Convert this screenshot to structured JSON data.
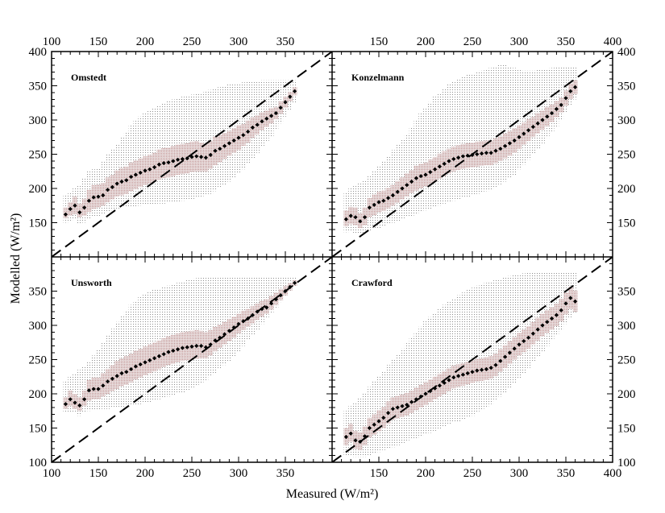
{
  "chart_data": {
    "type": "scatter",
    "layout": "2x2 panels sharing axes",
    "xlabel": "Measured (W/m²)",
    "ylabel": "Modelled (W/m²)",
    "xlim": [
      100,
      400
    ],
    "ylim": [
      100,
      400
    ],
    "x_ticks": [
      100,
      150,
      200,
      250,
      300,
      350,
      400
    ],
    "y_ticks": [
      100,
      150,
      200,
      250,
      300,
      350,
      400
    ],
    "reference_line": "1:1 (dashed)",
    "colors": {
      "points": "#000000",
      "inner_band": "#c9a3a3",
      "outer_band": "#9a9a9a",
      "reference_line": "#000000"
    },
    "panels": [
      {
        "title": "Omstedt",
        "x": [
          115,
          120,
          125,
          130,
          135,
          140,
          145,
          150,
          155,
          160,
          165,
          170,
          175,
          180,
          185,
          190,
          195,
          200,
          205,
          210,
          215,
          220,
          225,
          230,
          235,
          240,
          245,
          250,
          255,
          260,
          265,
          270,
          275,
          280,
          285,
          290,
          295,
          300,
          305,
          310,
          315,
          320,
          325,
          330,
          335,
          340,
          345,
          350,
          355,
          360
        ],
        "y": [
          162,
          170,
          175,
          165,
          172,
          182,
          187,
          188,
          190,
          198,
          202,
          207,
          210,
          212,
          217,
          220,
          223,
          226,
          228,
          231,
          235,
          237,
          238,
          240,
          242,
          243,
          244,
          246,
          247,
          246,
          245,
          249,
          255,
          258,
          262,
          266,
          270,
          274,
          278,
          283,
          289,
          293,
          298,
          302,
          306,
          310,
          318,
          326,
          334,
          342
        ],
        "band_outer_lo": [
          150,
          152,
          155,
          148,
          150,
          155,
          158,
          160,
          162,
          165,
          168,
          170,
          172,
          172,
          173,
          174,
          175,
          176,
          176,
          177,
          178,
          178,
          179,
          180,
          181,
          182,
          183,
          184,
          186,
          188,
          190,
          192,
          196,
          200,
          205,
          210,
          215,
          222,
          228,
          236,
          244,
          252,
          260,
          268,
          276,
          285,
          295,
          305,
          315,
          325
        ],
        "band_outer_hi": [
          190,
          195,
          200,
          205,
          215,
          225,
          228,
          230,
          240,
          250,
          258,
          265,
          275,
          283,
          292,
          300,
          305,
          310,
          315,
          318,
          322,
          325,
          328,
          330,
          332,
          334,
          336,
          337,
          338,
          340,
          342,
          344,
          346,
          348,
          350,
          352,
          353,
          354,
          355,
          356,
          356,
          357,
          358,
          358,
          358,
          358,
          358,
          358,
          358,
          358
        ],
        "band_inner_lo": [
          157,
          160,
          162,
          158,
          160,
          166,
          170,
          172,
          175,
          180,
          184,
          188,
          190,
          192,
          196,
          199,
          202,
          205,
          207,
          210,
          213,
          215,
          216,
          218,
          220,
          221,
          222,
          224,
          225,
          225,
          225,
          229,
          234,
          238,
          243,
          248,
          252,
          256,
          262,
          267,
          274,
          279,
          285,
          290,
          295,
          301,
          309,
          318,
          327,
          336
        ],
        "band_inner_hi": [
          172,
          180,
          188,
          178,
          185,
          198,
          205,
          206,
          208,
          216,
          220,
          226,
          230,
          232,
          238,
          241,
          244,
          247,
          249,
          252,
          257,
          259,
          260,
          262,
          264,
          265,
          266,
          268,
          269,
          267,
          265,
          269,
          276,
          278,
          281,
          284,
          288,
          292,
          294,
          299,
          304,
          307,
          311,
          314,
          317,
          319,
          327,
          334,
          341,
          348
        ]
      },
      {
        "title": "Konzelmann",
        "x": [
          115,
          120,
          125,
          130,
          135,
          140,
          145,
          150,
          155,
          160,
          165,
          170,
          175,
          180,
          185,
          190,
          195,
          200,
          205,
          210,
          215,
          220,
          225,
          230,
          235,
          240,
          245,
          250,
          255,
          260,
          265,
          270,
          275,
          280,
          285,
          290,
          295,
          300,
          305,
          310,
          315,
          320,
          325,
          330,
          335,
          340,
          345,
          350,
          355,
          360
        ],
        "y": [
          155,
          160,
          158,
          152,
          158,
          172,
          176,
          180,
          182,
          186,
          190,
          195,
          200,
          205,
          210,
          215,
          218,
          220,
          224,
          228,
          232,
          236,
          240,
          243,
          245,
          247,
          248,
          249,
          250,
          251,
          252,
          252,
          255,
          258,
          262,
          266,
          270,
          275,
          280,
          285,
          290,
          295,
          300,
          305,
          310,
          316,
          322,
          332,
          342,
          348
        ],
        "band_outer_lo": [
          136,
          138,
          135,
          133,
          135,
          138,
          140,
          142,
          145,
          148,
          150,
          152,
          155,
          158,
          160,
          162,
          165,
          168,
          170,
          172,
          175,
          178,
          180,
          182,
          184,
          186,
          188,
          190,
          192,
          194,
          196,
          198,
          202,
          206,
          210,
          215,
          220,
          228,
          235,
          242,
          250,
          258,
          266,
          274,
          282,
          290,
          300,
          310,
          320,
          330
        ],
        "band_outer_hi": [
          195,
          200,
          205,
          208,
          212,
          218,
          225,
          232,
          240,
          248,
          256,
          264,
          272,
          280,
          290,
          300,
          310,
          318,
          326,
          334,
          340,
          346,
          352,
          356,
          360,
          363,
          366,
          368,
          370,
          372,
          374,
          376,
          378,
          380,
          380,
          378,
          376,
          374,
          372,
          372,
          372,
          373,
          374,
          375,
          376,
          378,
          378,
          378,
          378,
          378
        ],
        "band_inner_lo": [
          145,
          148,
          146,
          142,
          146,
          158,
          161,
          165,
          167,
          171,
          175,
          179,
          184,
          188,
          193,
          197,
          200,
          203,
          206,
          210,
          214,
          218,
          222,
          225,
          227,
          229,
          230,
          231,
          232,
          233,
          234,
          234,
          237,
          240,
          244,
          248,
          252,
          258,
          264,
          269,
          275,
          280,
          286,
          291,
          297,
          304,
          311,
          321,
          331,
          338
        ],
        "band_inner_hi": [
          168,
          173,
          172,
          164,
          172,
          186,
          191,
          195,
          197,
          201,
          205,
          211,
          216,
          222,
          227,
          233,
          236,
          238,
          242,
          246,
          251,
          254,
          258,
          261,
          263,
          265,
          266,
          267,
          268,
          269,
          270,
          270,
          273,
          276,
          280,
          284,
          288,
          292,
          296,
          301,
          305,
          310,
          314,
          319,
          323,
          328,
          333,
          343,
          353,
          358
        ]
      },
      {
        "title": "Unsworth",
        "x": [
          115,
          120,
          125,
          130,
          135,
          140,
          145,
          150,
          155,
          160,
          165,
          170,
          175,
          180,
          185,
          190,
          195,
          200,
          205,
          210,
          215,
          220,
          225,
          230,
          235,
          240,
          245,
          250,
          255,
          260,
          265,
          270,
          275,
          280,
          285,
          290,
          295,
          300,
          305,
          310,
          315,
          320,
          325,
          330,
          335,
          340,
          345,
          350,
          355,
          360
        ],
        "y": [
          185,
          192,
          187,
          183,
          192,
          205,
          207,
          207,
          212,
          218,
          222,
          226,
          230,
          232,
          236,
          240,
          243,
          246,
          249,
          252,
          255,
          258,
          261,
          263,
          265,
          267,
          268,
          269,
          270,
          270,
          268,
          272,
          278,
          282,
          287,
          292,
          297,
          302,
          306,
          310,
          315,
          320,
          324,
          326,
          332,
          338,
          344,
          350,
          356,
          362
        ],
        "band_outer_lo": [
          172,
          174,
          172,
          168,
          172,
          175,
          176,
          176,
          178,
          178,
          180,
          180,
          181,
          182,
          183,
          184,
          185,
          186,
          188,
          190,
          192,
          194,
          196,
          198,
          200,
          202,
          205,
          208,
          212,
          216,
          220,
          225,
          230,
          236,
          242,
          248,
          255,
          262,
          270,
          278,
          286,
          294,
          302,
          310,
          318,
          326,
          334,
          342,
          350,
          356
        ],
        "band_outer_hi": [
          220,
          225,
          230,
          235,
          240,
          248,
          256,
          265,
          275,
          285,
          295,
          305,
          315,
          322,
          330,
          336,
          342,
          347,
          350,
          352,
          354,
          356,
          358,
          360,
          362,
          364,
          366,
          368,
          369,
          370,
          370,
          370,
          370,
          370,
          370,
          370,
          370,
          370,
          370,
          370,
          370,
          370,
          370,
          370,
          370,
          370,
          370,
          370,
          370,
          370
        ],
        "band_inner_lo": [
          178,
          182,
          178,
          175,
          182,
          190,
          192,
          192,
          196,
          200,
          204,
          207,
          211,
          213,
          217,
          221,
          224,
          227,
          230,
          233,
          236,
          239,
          242,
          244,
          246,
          248,
          249,
          250,
          251,
          252,
          252,
          256,
          262,
          267,
          272,
          277,
          282,
          288,
          293,
          298,
          303,
          308,
          313,
          317,
          323,
          330,
          337,
          344,
          351,
          358
        ],
        "band_inner_hi": [
          195,
          205,
          200,
          195,
          205,
          220,
          224,
          224,
          230,
          236,
          242,
          248,
          252,
          255,
          259,
          263,
          266,
          269,
          272,
          275,
          278,
          281,
          284,
          286,
          288,
          290,
          291,
          292,
          293,
          292,
          290,
          293,
          298,
          301,
          305,
          309,
          313,
          317,
          321,
          324,
          328,
          332,
          336,
          338,
          343,
          348,
          353,
          358,
          362,
          366
        ]
      },
      {
        "title": "Crawford",
        "x": [
          115,
          120,
          125,
          130,
          135,
          140,
          145,
          150,
          155,
          160,
          165,
          170,
          175,
          180,
          185,
          190,
          195,
          200,
          205,
          210,
          215,
          220,
          225,
          230,
          235,
          240,
          245,
          250,
          255,
          260,
          265,
          270,
          275,
          280,
          285,
          290,
          295,
          300,
          305,
          310,
          315,
          320,
          325,
          330,
          335,
          340,
          345,
          350,
          355,
          360
        ],
        "y": [
          137,
          142,
          132,
          130,
          138,
          150,
          155,
          160,
          165,
          172,
          178,
          180,
          182,
          184,
          188,
          192,
          196,
          200,
          204,
          208,
          212,
          216,
          220,
          224,
          226,
          228,
          230,
          232,
          234,
          235,
          236,
          238,
          242,
          248,
          254,
          260,
          266,
          272,
          277,
          282,
          288,
          294,
          300,
          305,
          310,
          315,
          322,
          332,
          340,
          335
        ],
        "band_outer_lo": [
          110,
          110,
          108,
          108,
          108,
          110,
          112,
          115,
          118,
          120,
          122,
          125,
          128,
          130,
          133,
          135,
          138,
          140,
          143,
          146,
          149,
          152,
          155,
          158,
          160,
          162,
          165,
          168,
          172,
          176,
          180,
          185,
          190,
          196,
          202,
          208,
          215,
          222,
          230,
          238,
          246,
          254,
          262,
          270,
          278,
          286,
          294,
          302,
          310,
          318
        ],
        "band_outer_hi": [
          175,
          182,
          188,
          195,
          202,
          210,
          218,
          226,
          234,
          242,
          250,
          258,
          266,
          274,
          282,
          290,
          298,
          306,
          312,
          318,
          324,
          330,
          335,
          340,
          344,
          348,
          352,
          355,
          358,
          360,
          362,
          364,
          366,
          368,
          370,
          372,
          374,
          375,
          376,
          377,
          378,
          378,
          378,
          378,
          378,
          378,
          378,
          378,
          378,
          378
        ],
        "band_inner_lo": [
          125,
          130,
          120,
          118,
          125,
          136,
          140,
          145,
          150,
          156,
          162,
          164,
          166,
          168,
          172,
          176,
          180,
          184,
          188,
          192,
          196,
          200,
          204,
          208,
          210,
          212,
          214,
          216,
          218,
          219,
          220,
          222,
          226,
          232,
          238,
          244,
          250,
          256,
          261,
          266,
          272,
          278,
          284,
          289,
          294,
          299,
          306,
          316,
          324,
          320
        ],
        "band_inner_hi": [
          150,
          156,
          146,
          144,
          152,
          165,
          170,
          176,
          181,
          189,
          195,
          197,
          199,
          201,
          205,
          209,
          213,
          217,
          221,
          225,
          229,
          233,
          237,
          241,
          243,
          245,
          247,
          249,
          251,
          252,
          253,
          255,
          259,
          265,
          271,
          277,
          283,
          289,
          294,
          299,
          305,
          311,
          317,
          322,
          327,
          332,
          339,
          348,
          356,
          351
        ]
      }
    ]
  }
}
